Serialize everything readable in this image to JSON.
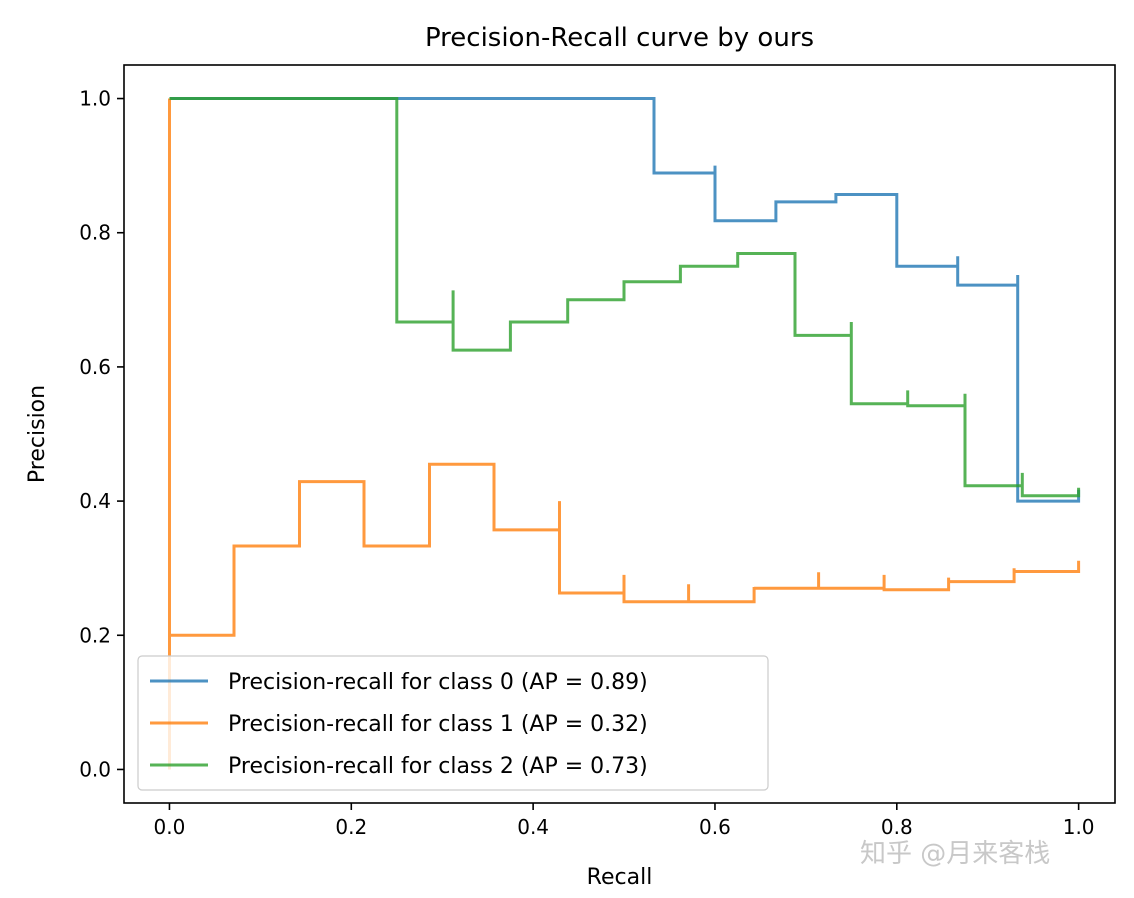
{
  "chart_data": {
    "type": "line",
    "title": "Precision-Recall curve by ours",
    "xlabel": "Recall",
    "ylabel": "Precision",
    "xlim": [
      -0.05,
      1.04
    ],
    "ylim": [
      -0.05,
      1.05
    ],
    "xticks": [
      0.0,
      0.2,
      0.4,
      0.6,
      0.8,
      1.0
    ],
    "xtick_labels": [
      "0.0",
      "0.2",
      "0.4",
      "0.6",
      "0.8",
      "1.0"
    ],
    "yticks": [
      0.0,
      0.2,
      0.4,
      0.6,
      0.8,
      1.0
    ],
    "ytick_labels": [
      "0.0",
      "0.2",
      "0.4",
      "0.6",
      "0.8",
      "1.0"
    ],
    "grid": false,
    "legend_position": "lower-left",
    "step": "post",
    "series": [
      {
        "name": "Precision-recall for class 0 (AP = 0.89)",
        "color": "#1f77b4",
        "recall": [
          0.0,
          0.533,
          0.533,
          0.6,
          0.6,
          0.667,
          0.667,
          0.733,
          0.733,
          0.8,
          0.8,
          0.867,
          0.867,
          0.933,
          0.933,
          1.0
        ],
        "precision": [
          1.0,
          1.0,
          0.889,
          0.9,
          0.818,
          0.833,
          0.846,
          0.846,
          0.857,
          0.857,
          0.75,
          0.765,
          0.722,
          0.737,
          0.4,
          0.417
        ]
      },
      {
        "name": "Precision-recall for class 1 (AP = 0.32)",
        "color": "#ff7f0e",
        "recall": [
          0.0,
          0.0,
          0.0,
          0.071,
          0.071,
          0.143,
          0.143,
          0.214,
          0.214,
          0.286,
          0.286,
          0.357,
          0.357,
          0.429,
          0.429,
          0.5,
          0.5,
          0.571,
          0.571,
          0.643,
          0.643,
          0.714,
          0.714,
          0.786,
          0.786,
          0.857,
          0.857,
          0.929,
          0.929,
          1.0
        ],
        "precision": [
          1.0,
          0.0,
          0.2,
          0.2,
          0.333,
          0.333,
          0.429,
          0.429,
          0.333,
          0.4,
          0.455,
          0.455,
          0.357,
          0.4,
          0.263,
          0.29,
          0.25,
          0.276,
          0.25,
          0.272,
          0.27,
          0.294,
          0.27,
          0.29,
          0.268,
          0.286,
          0.28,
          0.3,
          0.295,
          0.311
        ]
      },
      {
        "name": "Precision-recall for class 2 (AP = 0.73)",
        "color": "#2ca02c",
        "recall": [
          0.0,
          0.25,
          0.25,
          0.312,
          0.312,
          0.375,
          0.375,
          0.438,
          0.438,
          0.5,
          0.5,
          0.562,
          0.562,
          0.625,
          0.625,
          0.688,
          0.688,
          0.75,
          0.75,
          0.812,
          0.812,
          0.875,
          0.875,
          0.938,
          0.938,
          1.0
        ],
        "precision": [
          1.0,
          1.0,
          0.667,
          0.714,
          0.625,
          0.667,
          0.667,
          0.7,
          0.7,
          0.727,
          0.727,
          0.75,
          0.75,
          0.769,
          0.769,
          0.688,
          0.647,
          0.667,
          0.545,
          0.565,
          0.542,
          0.56,
          0.423,
          0.442,
          0.408,
          0.42
        ]
      }
    ]
  },
  "watermark": "知乎 @月来客栈"
}
